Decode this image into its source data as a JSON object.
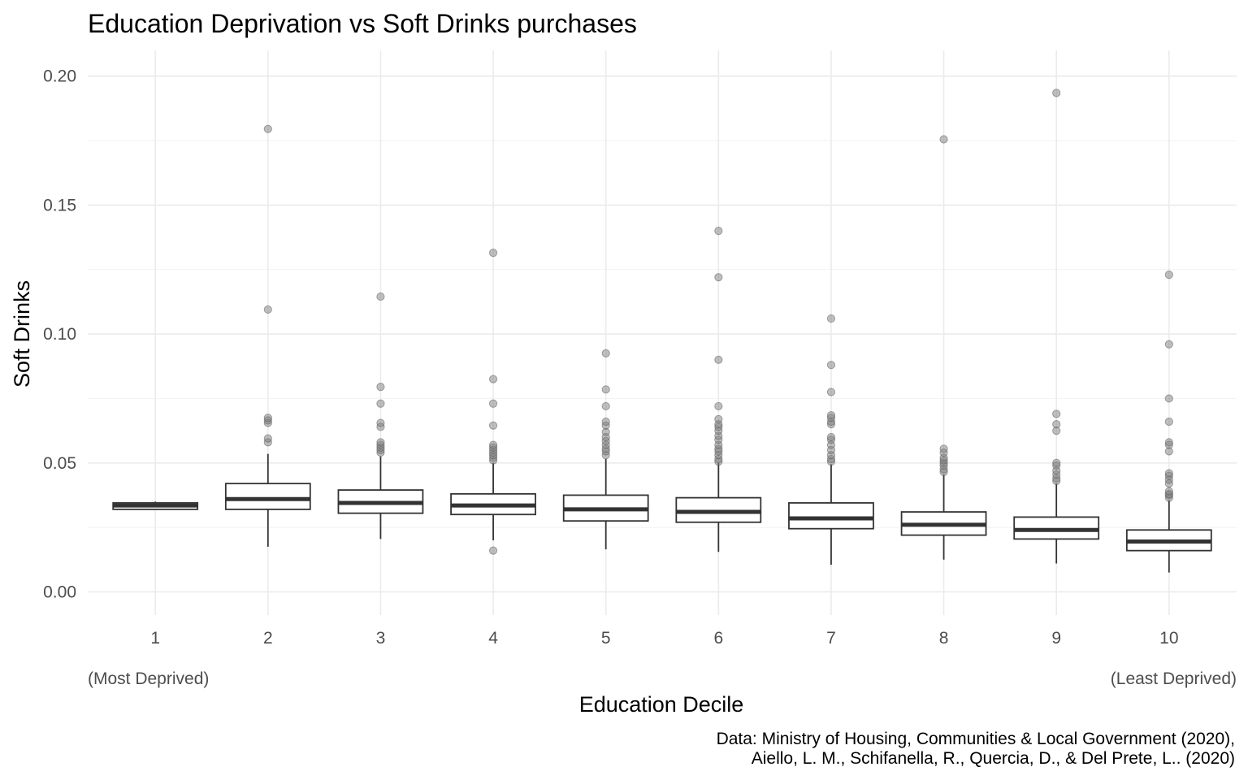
{
  "chart_data": {
    "type": "boxplot",
    "title": "Education Deprivation vs Soft Drinks purchases",
    "xlabel": "Education Decile",
    "ylabel": "Soft Drinks",
    "x_note_left": "(Most Deprived)",
    "x_note_right": "(Least Deprived)",
    "caption_line1": "Data: Ministry of Housing, Communities & Local Government (2020),",
    "caption_line2": "Aiello, L. M., Schifanella, R., Quercia, D., & Del Prete, L.. (2020)",
    "ylim": [
      -0.009,
      0.21
    ],
    "yticks": [
      0.0,
      0.05,
      0.1,
      0.15,
      0.2
    ],
    "ytick_labels": [
      "0.00",
      "0.05",
      "0.10",
      "0.15",
      "0.20"
    ],
    "grid": true,
    "categories": [
      "1",
      "2",
      "3",
      "4",
      "5",
      "6",
      "7",
      "8",
      "9",
      "10"
    ],
    "boxes": [
      {
        "category": "1",
        "lower_whisker": 0.032,
        "q1": 0.032,
        "median": 0.0335,
        "q3": 0.0345,
        "upper_whisker": 0.035,
        "outliers": []
      },
      {
        "category": "2",
        "lower_whisker": 0.0175,
        "q1": 0.032,
        "median": 0.036,
        "q3": 0.042,
        "upper_whisker": 0.0535,
        "outliers": [
          0.058,
          0.0595,
          0.0655,
          0.0665,
          0.0675,
          0.1095,
          0.1795
        ]
      },
      {
        "category": "3",
        "lower_whisker": 0.0205,
        "q1": 0.0305,
        "median": 0.0345,
        "q3": 0.0395,
        "upper_whisker": 0.0525,
        "outliers": [
          0.054,
          0.055,
          0.056,
          0.057,
          0.058,
          0.064,
          0.0655,
          0.073,
          0.0795,
          0.1145
        ]
      },
      {
        "category": "4",
        "lower_whisker": 0.02,
        "q1": 0.03,
        "median": 0.0335,
        "q3": 0.038,
        "upper_whisker": 0.05,
        "outliers": [
          0.016,
          0.051,
          0.052,
          0.053,
          0.054,
          0.055,
          0.056,
          0.057,
          0.0645,
          0.073,
          0.0825,
          0.1315
        ]
      },
      {
        "category": "5",
        "lower_whisker": 0.0165,
        "q1": 0.0275,
        "median": 0.032,
        "q3": 0.0375,
        "upper_whisker": 0.0515,
        "outliers": [
          0.053,
          0.0545,
          0.0555,
          0.057,
          0.0585,
          0.06,
          0.062,
          0.0645,
          0.066,
          0.072,
          0.0785,
          0.0925
        ]
      },
      {
        "category": "6",
        "lower_whisker": 0.0155,
        "q1": 0.027,
        "median": 0.031,
        "q3": 0.0365,
        "upper_whisker": 0.05,
        "outliers": [
          0.0505,
          0.0515,
          0.053,
          0.0545,
          0.0555,
          0.057,
          0.059,
          0.0605,
          0.0625,
          0.064,
          0.065,
          0.067,
          0.072,
          0.09,
          0.122,
          0.14
        ]
      },
      {
        "category": "7",
        "lower_whisker": 0.0105,
        "q1": 0.0245,
        "median": 0.0285,
        "q3": 0.0345,
        "upper_whisker": 0.0495,
        "outliers": [
          0.0505,
          0.0515,
          0.053,
          0.055,
          0.057,
          0.059,
          0.06,
          0.065,
          0.066,
          0.0675,
          0.0685,
          0.0775,
          0.088,
          0.106
        ]
      },
      {
        "category": "8",
        "lower_whisker": 0.0125,
        "q1": 0.022,
        "median": 0.026,
        "q3": 0.031,
        "upper_whisker": 0.0455,
        "outliers": [
          0.0465,
          0.0475,
          0.049,
          0.05,
          0.051,
          0.052,
          0.054,
          0.0555,
          0.1755
        ]
      },
      {
        "category": "9",
        "lower_whisker": 0.011,
        "q1": 0.0205,
        "median": 0.024,
        "q3": 0.029,
        "upper_whisker": 0.042,
        "outliers": [
          0.043,
          0.044,
          0.0455,
          0.047,
          0.049,
          0.05,
          0.0625,
          0.065,
          0.069,
          0.1935
        ]
      },
      {
        "category": "10",
        "lower_whisker": 0.0075,
        "q1": 0.016,
        "median": 0.0195,
        "q3": 0.024,
        "upper_whisker": 0.0355,
        "outliers": [
          0.0365,
          0.0375,
          0.038,
          0.039,
          0.042,
          0.0435,
          0.045,
          0.046,
          0.0545,
          0.057,
          0.058,
          0.066,
          0.075,
          0.096,
          0.123
        ]
      }
    ]
  }
}
